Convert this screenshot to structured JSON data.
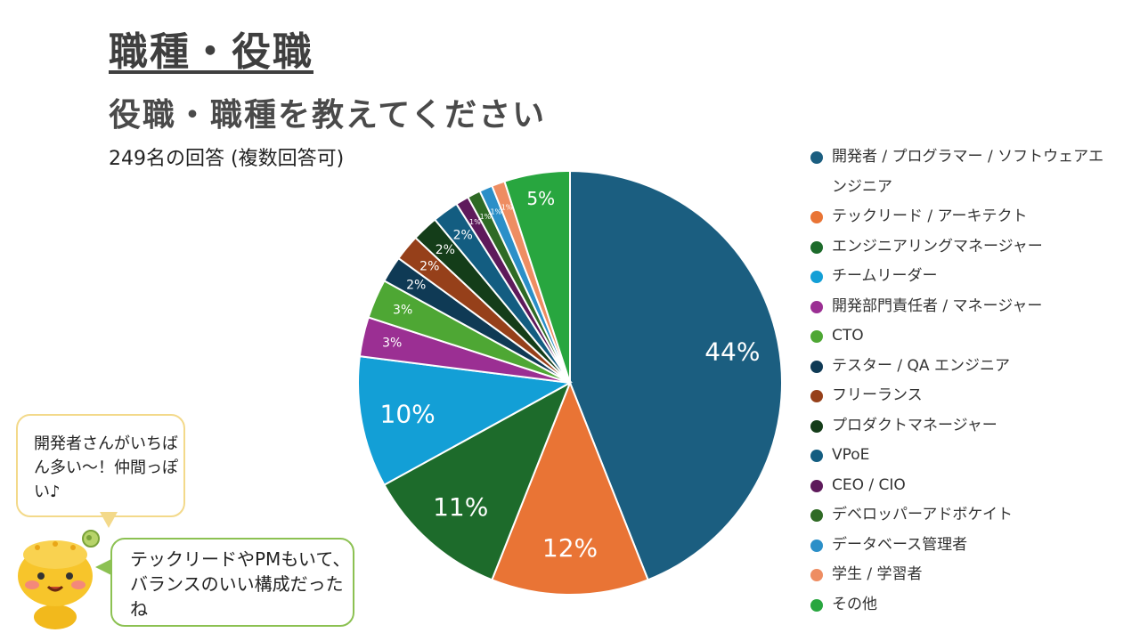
{
  "page": {
    "title": "職種・役職",
    "subtitle": "役職・職種を教えてください",
    "note": "249名の回答 (複数回答可)"
  },
  "chart_data": {
    "type": "pie",
    "title": "役職・職種を教えてください",
    "start_angle": "12 o'clock, clockwise",
    "slices": [
      {
        "label": "開発者 / プログラマー / ソフトウェアエンジニア",
        "value": 44,
        "display": "44%",
        "color": "#1b5e80"
      },
      {
        "label": "テックリード / アーキテクト",
        "value": 12,
        "display": "12%",
        "color": "#e97435"
      },
      {
        "label": "エンジニアリングマネージャー",
        "value": 11,
        "display": "11%",
        "color": "#1d6b2b"
      },
      {
        "label": "チームリーダー",
        "value": 10,
        "display": "10%",
        "color": "#139fd6"
      },
      {
        "label": "開発部門責任者 / マネージャー",
        "value": 3,
        "display": "3%",
        "color": "#9b2f93"
      },
      {
        "label": "CTO",
        "value": 3,
        "display": "3%",
        "color": "#4ea734"
      },
      {
        "label": "テスター / QA エンジニア",
        "value": 2,
        "display": "2%",
        "color": "#0f3a55"
      },
      {
        "label": "フリーランス",
        "value": 2,
        "display": "2%",
        "color": "#96401a"
      },
      {
        "label": "プロダクトマネージャー",
        "value": 2,
        "display": "2%",
        "color": "#143d19"
      },
      {
        "label": "VPoE",
        "value": 2,
        "display": "2%",
        "color": "#135d81"
      },
      {
        "label": "CEO / CIO",
        "value": 1,
        "display": "1%",
        "color": "#5e1a5b"
      },
      {
        "label": "デベロッパーアドボケイト",
        "value": 1,
        "display": "1%",
        "color": "#2f6a25"
      },
      {
        "label": "データベース管理者",
        "value": 1,
        "display": "1%",
        "color": "#2b8fc8"
      },
      {
        "label": "学生 / 学習者",
        "value": 1,
        "display": "1%",
        "color": "#ee8d62"
      },
      {
        "label": "その他",
        "value": 5,
        "display": "5%",
        "color": "#28a63f"
      }
    ]
  },
  "speech": {
    "bubble1": "開発者さんがいちばん多い〜！仲間っぽい♪",
    "bubble2": "テックリードやPMもいて、バランスのいい構成だったね"
  }
}
